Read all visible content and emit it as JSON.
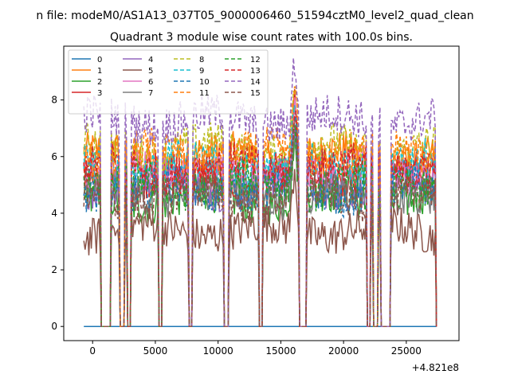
{
  "figure": {
    "suptitle": "n file: modeM0/AS1A13_037T05_9000006460_51594cztM0_level2_quad_clean",
    "background": "#ffffff"
  },
  "chart_data": {
    "type": "line",
    "title": "Quadrant 3 module wise count rates with 100.0s bins.",
    "xlabel": "",
    "ylabel": "",
    "x_offset_label": "+4.821e8",
    "xlim": [
      -2300,
      29200
    ],
    "ylim": [
      -0.5,
      9.9
    ],
    "x_ticks": [
      0,
      5000,
      10000,
      15000,
      20000,
      25000
    ],
    "y_ticks": [
      0,
      2,
      4,
      6,
      8
    ],
    "grid": false,
    "legend": {
      "placement": "upper-left",
      "columns": 4
    },
    "x_range": [
      -700,
      27400
    ],
    "gaps": [
      [
        700,
        1400
      ],
      [
        2200,
        2500
      ],
      [
        2800,
        3000
      ],
      [
        5300,
        5500
      ],
      [
        7700,
        7900
      ],
      [
        10500,
        10800
      ],
      [
        13300,
        13500
      ],
      [
        16500,
        17000
      ],
      [
        21900,
        22100
      ],
      [
        22400,
        22700
      ],
      [
        23000,
        23700
      ],
      [
        27400,
        27400
      ]
    ],
    "series": [
      {
        "name": "0",
        "color": "#1f77b4",
        "dash": "solid",
        "base": 0.0
      },
      {
        "name": "1",
        "color": "#ff7f0e",
        "dash": "solid",
        "base": 6.0
      },
      {
        "name": "2",
        "color": "#2ca02c",
        "dash": "solid",
        "base": 4.5
      },
      {
        "name": "3",
        "color": "#d62728",
        "dash": "solid",
        "base": 5.3
      },
      {
        "name": "4",
        "color": "#9467bd",
        "dash": "solid",
        "base": 5.0
      },
      {
        "name": "5",
        "color": "#8c564b",
        "dash": "solid",
        "base": 3.4
      },
      {
        "name": "6",
        "color": "#e377c2",
        "dash": "solid",
        "base": 5.5
      },
      {
        "name": "7",
        "color": "#7f7f7f",
        "dash": "solid",
        "base": 4.7
      },
      {
        "name": "8",
        "color": "#bcbd22",
        "dash": "dashed",
        "base": 6.3
      },
      {
        "name": "9",
        "color": "#17becf",
        "dash": "dashed",
        "base": 5.7
      },
      {
        "name": "10",
        "color": "#1f77b4",
        "dash": "dashed",
        "base": 4.8
      },
      {
        "name": "11",
        "color": "#ff7f0e",
        "dash": "dashed",
        "base": 6.1
      },
      {
        "name": "12",
        "color": "#2ca02c",
        "dash": "dashed",
        "base": 5.0
      },
      {
        "name": "13",
        "color": "#d62728",
        "dash": "dashed",
        "base": 5.6
      },
      {
        "name": "14",
        "color": "#9467bd",
        "dash": "dashed",
        "base": 7.3
      },
      {
        "name": "15",
        "color": "#8c564b",
        "dash": "dashed",
        "base": 4.6
      }
    ]
  }
}
